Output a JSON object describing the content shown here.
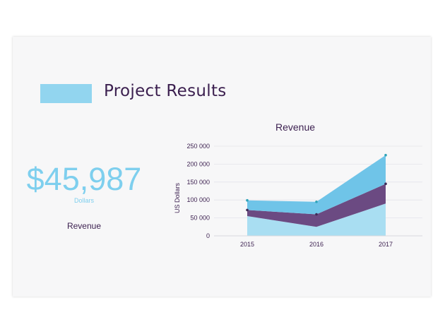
{
  "slide": {
    "title": "Project Results",
    "accent_color": "#92d5ef"
  },
  "kpi": {
    "value": "$45,987",
    "unit": "Dollars",
    "label": "Revenue",
    "color": "#7ecfee"
  },
  "chart_data": {
    "type": "area",
    "title": "Revenue",
    "ylabel": "US Dollars",
    "xlabel": "",
    "categories": [
      "2015",
      "2016",
      "2017"
    ],
    "ylim": [
      0,
      250000
    ],
    "yticks": [
      0,
      50000,
      100000,
      150000,
      200000,
      250000
    ],
    "ytick_labels": [
      "0",
      "50 000",
      "100 000",
      "150 000",
      "200 000",
      "250 000"
    ],
    "stacked": true,
    "grid": true,
    "legend": "none",
    "series": [
      {
        "values": [
          55000,
          25000,
          90000
        ],
        "color": "#a9def2"
      },
      {
        "values": [
          17000,
          35000,
          55000
        ],
        "color": "#6b4a82"
      },
      {
        "values": [
          27000,
          35000,
          80000
        ],
        "color": "#6fc4e8"
      }
    ]
  }
}
